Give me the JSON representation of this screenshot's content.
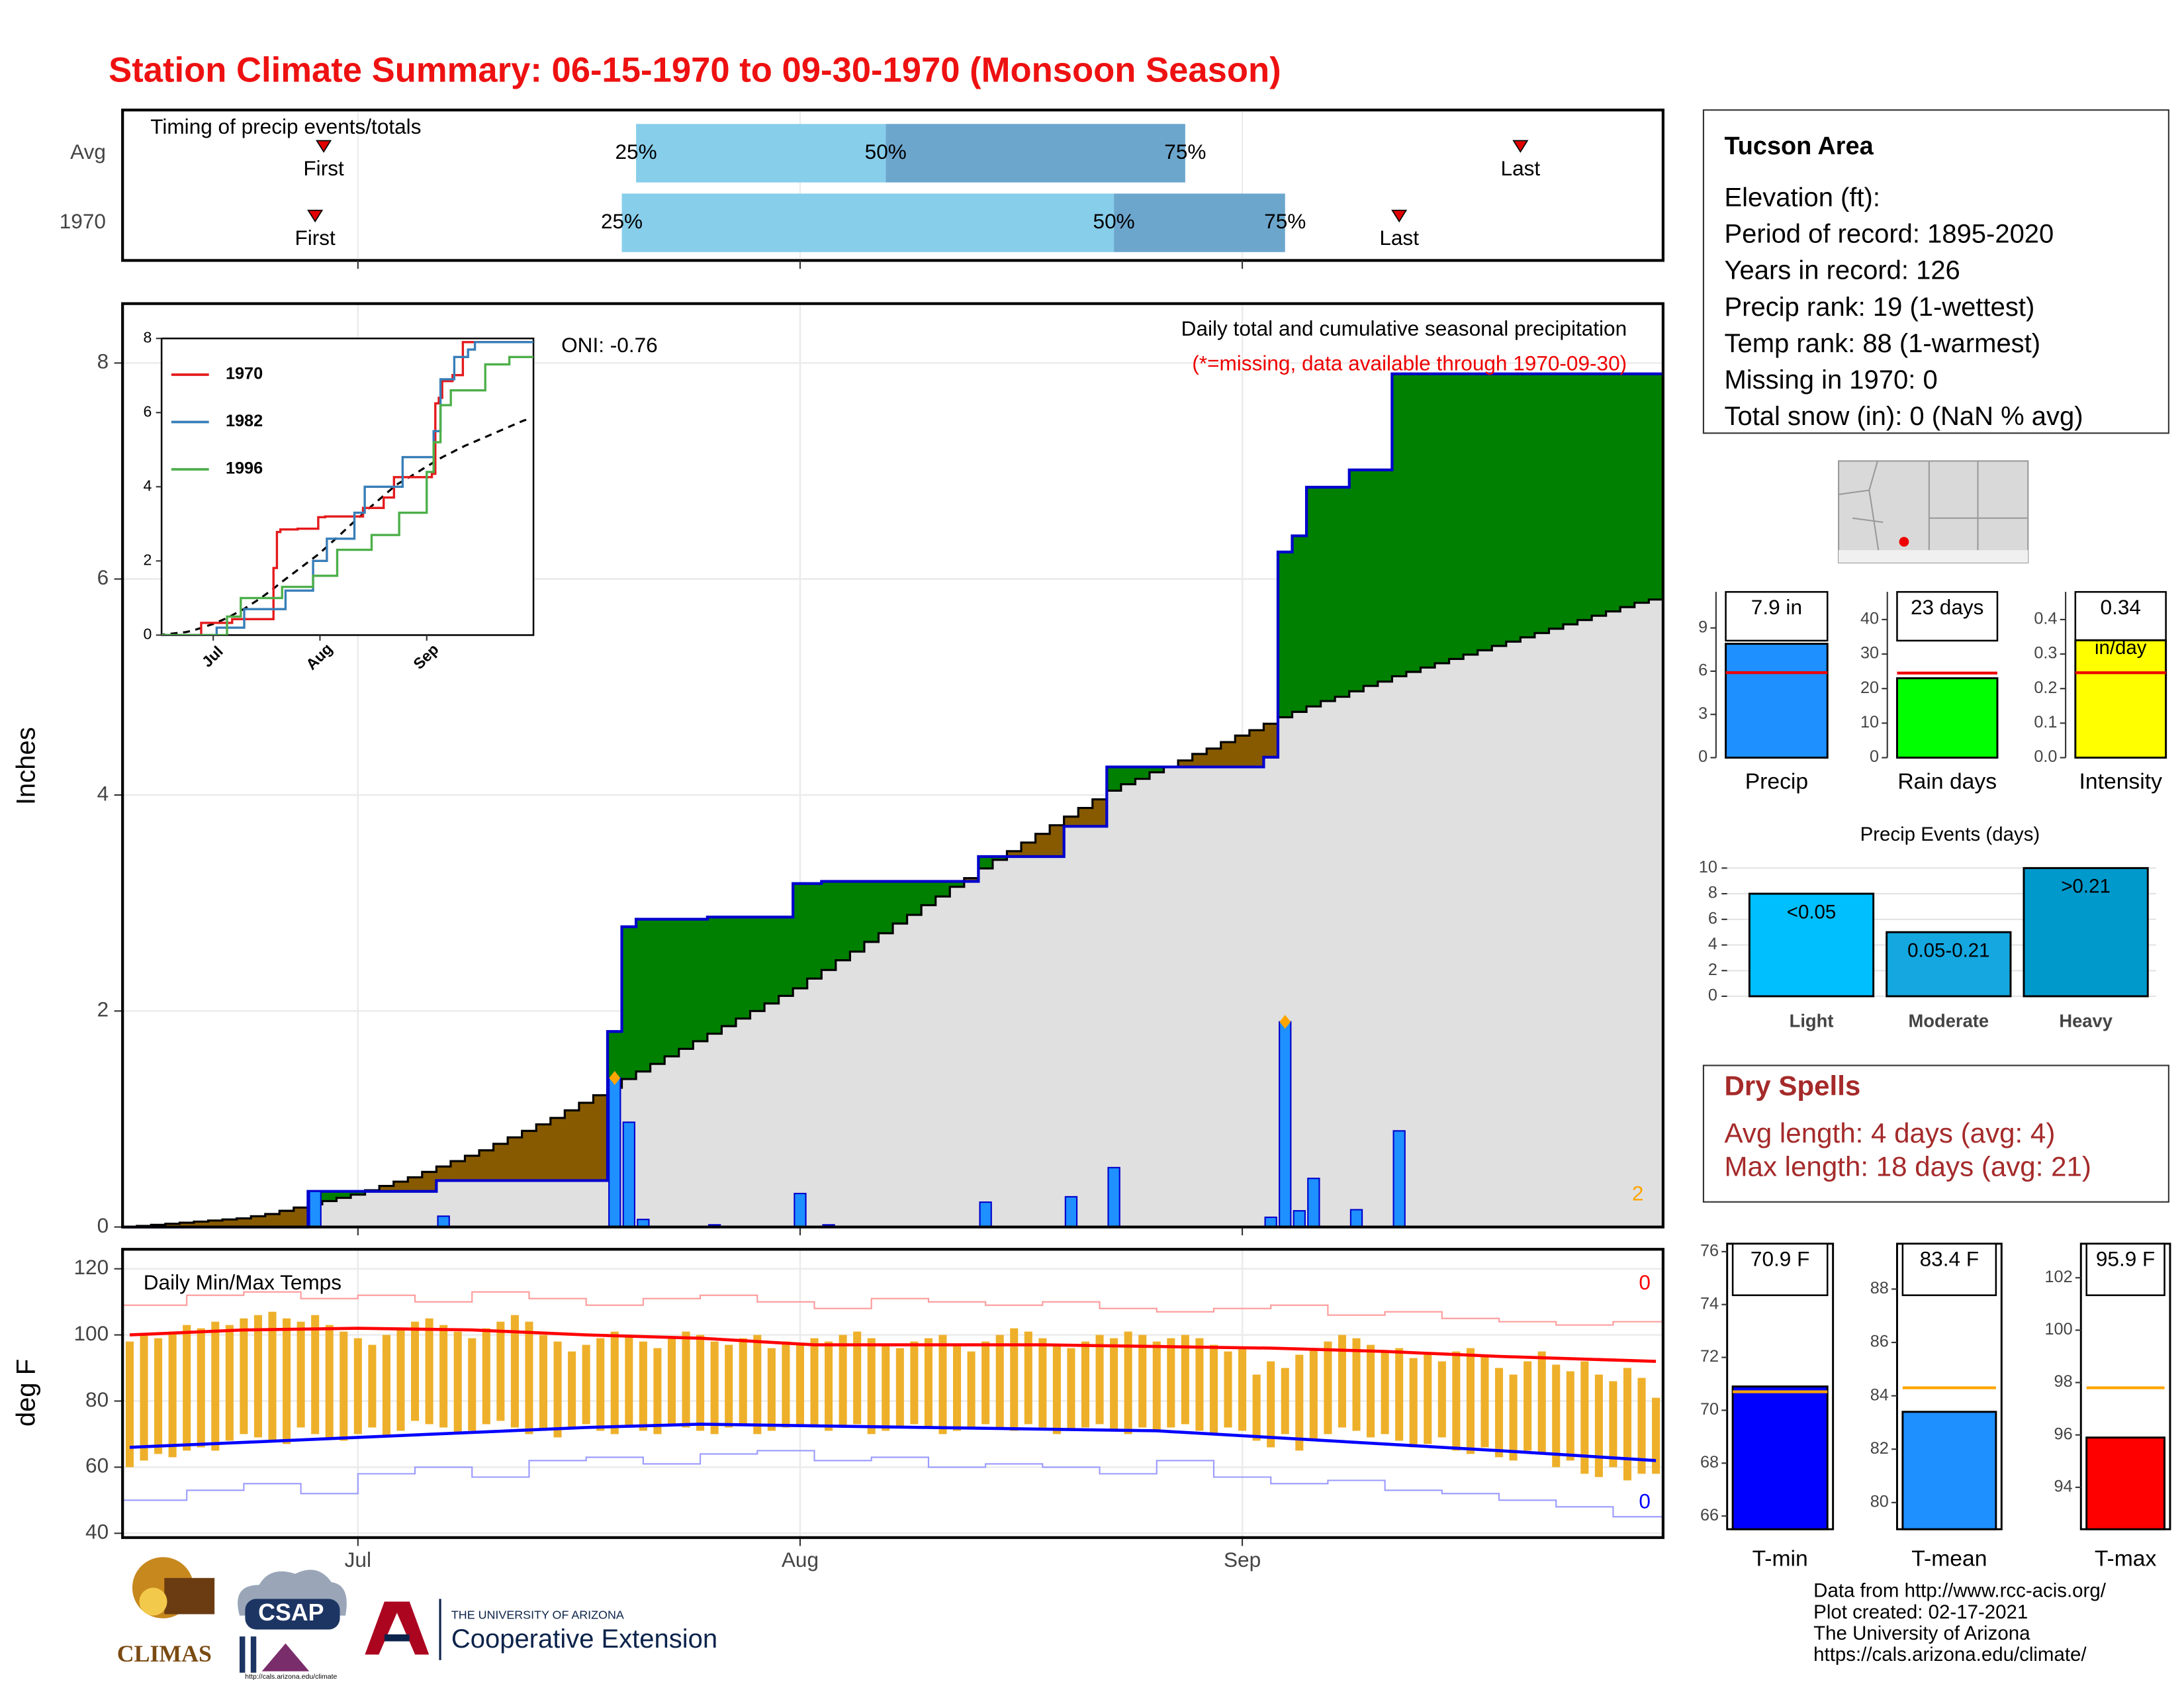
{
  "title": "Station Climate Summary: 06-15-1970 to 09-30-1970 (Monsoon Season)",
  "timing": {
    "title": "Timing of precip events/totals",
    "rows": [
      {
        "label": "Avg",
        "first": 13.6,
        "q25": 35.5,
        "q50": 53,
        "q75": 74,
        "last": 97.5
      },
      {
        "label": "1970",
        "first": 13,
        "q25": 34.5,
        "q50": 69,
        "q75": 81,
        "last": 89
      }
    ],
    "quantile_labels": [
      "25%",
      "50%",
      "75%"
    ],
    "first_label": "First",
    "last_label": "Last",
    "light_color": "#87ceeb",
    "dark_color": "#6ca6cd"
  },
  "precip": {
    "type": "step-area",
    "subtitle": "Daily total and cumulative seasonal precipitation",
    "note": "(*=missing, data available through 1970-09-30)",
    "oni": "ONI: -0.76",
    "ylabel": "Inches",
    "ylim": [
      0,
      8.55
    ],
    "yticks": [
      0,
      2,
      4,
      6,
      8
    ],
    "daily": [
      0,
      0,
      0,
      0,
      0,
      0,
      0,
      0,
      0,
      0,
      0,
      0,
      0,
      0.33,
      0,
      0,
      0,
      0,
      0,
      0,
      0,
      0,
      0.1,
      0,
      0,
      0,
      0,
      0,
      0,
      0,
      0,
      0,
      0,
      0,
      1.38,
      0.97,
      0.07,
      0,
      0,
      0,
      0,
      0.02,
      0,
      0,
      0,
      0,
      0,
      0.31,
      0,
      0.02,
      0,
      0,
      0,
      0,
      0,
      0,
      0,
      0,
      0,
      0,
      0.23,
      0,
      0,
      0,
      0,
      0,
      0.28,
      0,
      0,
      0.55,
      0,
      0,
      0,
      0,
      0,
      0,
      0,
      0,
      0,
      0,
      0.09,
      1.9,
      0.15,
      0.45,
      0,
      0,
      0.16,
      0,
      0,
      0.89,
      0,
      0,
      0,
      0,
      0,
      0,
      0,
      0,
      0,
      0,
      0,
      0,
      0,
      0,
      0,
      0,
      0,
      0
    ],
    "avg": [
      0,
      0.01,
      0.02,
      0.03,
      0.04,
      0.05,
      0.06,
      0.07,
      0.08,
      0.1,
      0.12,
      0.15,
      0.18,
      0.21,
      0.24,
      0.27,
      0.3,
      0.34,
      0.38,
      0.42,
      0.46,
      0.51,
      0.56,
      0.61,
      0.66,
      0.71,
      0.77,
      0.83,
      0.89,
      0.95,
      1.01,
      1.08,
      1.15,
      1.22,
      1.29,
      1.37,
      1.44,
      1.51,
      1.58,
      1.65,
      1.72,
      1.79,
      1.86,
      1.93,
      2.0,
      2.07,
      2.14,
      2.21,
      2.3,
      2.38,
      2.47,
      2.55,
      2.64,
      2.72,
      2.81,
      2.89,
      2.98,
      3.06,
      3.15,
      3.23,
      3.32,
      3.4,
      3.48,
      3.56,
      3.64,
      3.72,
      3.8,
      3.88,
      3.96,
      4.04,
      4.1,
      4.15,
      4.21,
      4.26,
      4.32,
      4.38,
      4.43,
      4.49,
      4.55,
      4.6,
      4.66,
      4.72,
      4.77,
      4.82,
      4.87,
      4.91,
      4.96,
      5.01,
      5.05,
      5.1,
      5.14,
      5.18,
      5.22,
      5.26,
      5.3,
      5.34,
      5.38,
      5.42,
      5.46,
      5.5,
      5.54,
      5.58,
      5.62,
      5.66,
      5.7,
      5.74,
      5.78,
      5.81
    ],
    "record_days": [
      34,
      81
    ],
    "record_count": 2,
    "above_color": "#008000",
    "below_color": "#875a00",
    "avg_fill": "#e0e0e0",
    "line_color": "#0000cd",
    "bar_color": "#1e90ff",
    "record_color": "#ffa500"
  },
  "inset": {
    "type": "line",
    "ylim": [
      0,
      8
    ],
    "yticks": [
      0,
      2,
      4,
      6,
      8
    ],
    "xlim": [
      1,
      109
    ],
    "series": [
      {
        "name": "1970",
        "color": "#e41a1c"
      },
      {
        "name": "1982",
        "color": "#377eb8",
        "x": [
          0,
          17,
          25,
          37,
          45,
          49,
          57,
          60,
          71,
          80,
          82,
          86,
          90,
          92
        ],
        "values": [
          0,
          0.2,
          0.7,
          1.2,
          2.0,
          2.6,
          3.3,
          4.0,
          4.8,
          5.5,
          6.9,
          7.5,
          7.7,
          7.9
        ]
      },
      {
        "name": "1996",
        "color": "#4daf4a",
        "x": [
          0,
          20,
          24,
          36,
          45,
          52,
          62,
          70,
          78,
          80,
          82,
          85,
          95,
          102
        ],
        "values": [
          0,
          0.5,
          1.0,
          1.3,
          1.6,
          2.3,
          2.7,
          3.3,
          4.4,
          5.2,
          6.2,
          6.6,
          7.3,
          7.5
        ]
      }
    ]
  },
  "temps": {
    "type": "range-bar",
    "title": "Daily Min/Max Temps",
    "ylabel": "deg F",
    "ylim": [
      38.7,
      125.9
    ],
    "yticks": [
      40,
      60,
      80,
      100,
      120
    ],
    "xlim": [
      -0.5,
      107.5
    ],
    "xticks": [
      {
        "value": 16,
        "label": "Jul"
      },
      {
        "value": 47,
        "label": "Aug"
      },
      {
        "value": 78,
        "label": "Sep"
      }
    ],
    "max": [
      98,
      100,
      99,
      101,
      103,
      102,
      104,
      103,
      105,
      106,
      107,
      105,
      104,
      106,
      103,
      101,
      99,
      97,
      100,
      102,
      104,
      105,
      103,
      101,
      99,
      102,
      104,
      106,
      104,
      100,
      98,
      95,
      97,
      99,
      101,
      100,
      98,
      96,
      99,
      101,
      100,
      98,
      97,
      99,
      100,
      96,
      98,
      97,
      99,
      98,
      100,
      101,
      99,
      97,
      96,
      98,
      99,
      100,
      97,
      95,
      98,
      100,
      102,
      101,
      99,
      97,
      96,
      98,
      100,
      99,
      101,
      100,
      98,
      99,
      100,
      99,
      97,
      95,
      96,
      88,
      92,
      90,
      94,
      96,
      98,
      100,
      99,
      97,
      95,
      96,
      93,
      94,
      92,
      95,
      96,
      94,
      90,
      88,
      92,
      95,
      91,
      89,
      92,
      88,
      86,
      90,
      87,
      81
    ],
    "min": [
      60,
      62,
      64,
      63,
      65,
      66,
      65,
      68,
      70,
      69,
      68,
      67,
      72,
      70,
      69,
      68,
      70,
      72,
      69,
      71,
      74,
      73,
      72,
      70,
      71,
      73,
      74,
      72,
      70,
      71,
      69,
      72,
      73,
      71,
      70,
      72,
      71,
      70,
      73,
      72,
      71,
      70,
      72,
      73,
      70,
      71,
      72,
      73,
      72,
      71,
      72,
      73,
      70,
      71,
      72,
      73,
      72,
      70,
      71,
      72,
      73,
      72,
      71,
      73,
      72,
      70,
      71,
      72,
      73,
      71,
      70,
      72,
      71,
      72,
      73,
      71,
      70,
      72,
      71,
      68,
      66,
      70,
      65,
      68,
      70,
      72,
      71,
      69,
      70,
      68,
      66,
      67,
      69,
      65,
      64,
      66,
      63,
      62,
      65,
      64,
      60,
      62,
      58,
      57,
      60,
      56,
      58,
      58
    ],
    "normal_x": [
      0,
      8,
      16,
      24,
      32,
      40,
      48,
      56,
      64,
      72,
      80,
      88,
      96,
      107
    ],
    "normal_max": [
      100,
      101.5,
      102,
      101.5,
      100,
      99,
      97,
      97,
      97,
      96.5,
      96,
      95,
      93.5,
      92
    ],
    "normal_min": [
      66,
      67.5,
      69,
      70.5,
      72,
      73,
      72.5,
      72,
      71.5,
      71,
      69,
      67,
      65,
      62
    ],
    "record_x": [
      0,
      4,
      8,
      12,
      16,
      20,
      24,
      28,
      32,
      36,
      40,
      44,
      48,
      52,
      56,
      60,
      64,
      68,
      72,
      76,
      80,
      84,
      88,
      92,
      96,
      100,
      104
    ],
    "record_max": [
      109,
      112,
      113,
      111,
      112,
      110,
      113,
      111,
      109,
      111,
      112,
      110,
      108,
      111,
      110,
      109,
      110,
      108,
      107,
      108,
      109,
      106,
      107,
      105,
      104,
      103,
      104
    ],
    "record_min": [
      50,
      53,
      55,
      52,
      58,
      60,
      57,
      62,
      63,
      61,
      64,
      65,
      62,
      63,
      60,
      61,
      60,
      58,
      62,
      57,
      55,
      56,
      53,
      52,
      50,
      48,
      45
    ],
    "record_max_count": 0,
    "record_min_count": 0,
    "bar_color": "#eeb02a",
    "max_color": "#ff0000",
    "min_color": "#0000ff",
    "record_max_color": "#ff9a9a",
    "record_min_color": "#9a9aff"
  },
  "info": {
    "title": "Tucson Area",
    "lines": [
      "Elevation (ft):",
      "Period of record: 1895-2020",
      "Years in record: 126",
      "Precip rank: 19 (1-wettest)",
      "Temp rank: 88 (1-warmest)",
      "Missing in 1970: 0",
      "Total snow (in): 0 (NaN % avg)"
    ]
  },
  "summary_bars": [
    {
      "category": "Precip",
      "value": 7.9,
      "value_label": "7.9 in",
      "avg": 5.9,
      "color": "#1e90ff",
      "ylim": [
        0,
        11.5
      ],
      "yticks": [
        0,
        3,
        6,
        9
      ]
    },
    {
      "category": "Rain days",
      "value": 23,
      "value_label": "23 days",
      "avg": 24.5,
      "color": "#00ff00",
      "ylim": [
        0,
        48
      ],
      "yticks": [
        0,
        10,
        20,
        30,
        40
      ]
    },
    {
      "category": "Intensity",
      "value": 0.34,
      "value_label": "0.34",
      "value_unit": "in/day",
      "avg": 0.246,
      "color": "#ffff00",
      "ylim": [
        0,
        0.48
      ],
      "yticks": [
        {
          "value": 0,
          "label": "0.0"
        },
        0.1,
        0.2,
        0.3,
        0.4
      ]
    }
  ],
  "events": {
    "type": "bar",
    "title": "Precip Events (days)",
    "categories": [
      "Light",
      "Moderate",
      "Heavy"
    ],
    "values": [
      8,
      5,
      10
    ],
    "bar_labels": [
      "<0.05",
      "0.05-0.21",
      ">0.21"
    ],
    "colors": [
      "#00bfff",
      "#14a7e0",
      "#0099cc"
    ],
    "ylim": [
      -0.4,
      10.9
    ],
    "yticks": [
      0,
      2,
      4,
      6,
      8,
      10
    ]
  },
  "dry_spells": {
    "title": "Dry Spells",
    "lines": [
      "Avg length: 4 days (avg: 4)",
      "Max length: 18 days (avg: 21)"
    ]
  },
  "temp_bars": [
    {
      "category": "T-min",
      "value": 70.9,
      "value_label": "70.9 F",
      "avg": 70.7,
      "color": "#0000ff",
      "ylim": [
        65.5,
        76.3
      ],
      "yticks": [
        66,
        68,
        70,
        72,
        74,
        76
      ]
    },
    {
      "category": "T-mean",
      "value": 83.4,
      "value_label": "83.4 F",
      "avg": 84.3,
      "color": "#1e90ff",
      "ylim": [
        79,
        89.7
      ],
      "yticks": [
        80,
        82,
        84,
        86,
        88
      ]
    },
    {
      "category": "T-max",
      "value": 95.9,
      "value_label": "95.9 F",
      "avg": 97.8,
      "color": "#ff0000",
      "ylim": [
        92.4,
        103.3
      ],
      "yticks": [
        94,
        96,
        98,
        100,
        102
      ]
    }
  ],
  "footer": [
    "Data from http://www.rcc-acis.org/",
    "Plot created: 02-17-2021",
    "The University of Arizona",
    "https://cals.arizona.edu/climate/"
  ],
  "logos": {
    "climas": "CLIMAS",
    "csap": "CSAP",
    "csap_url": "http://cals.arizona.edu/climate",
    "ua": "THE UNIVERSITY OF ARIZONA",
    "coop": "Cooperative Extension"
  }
}
